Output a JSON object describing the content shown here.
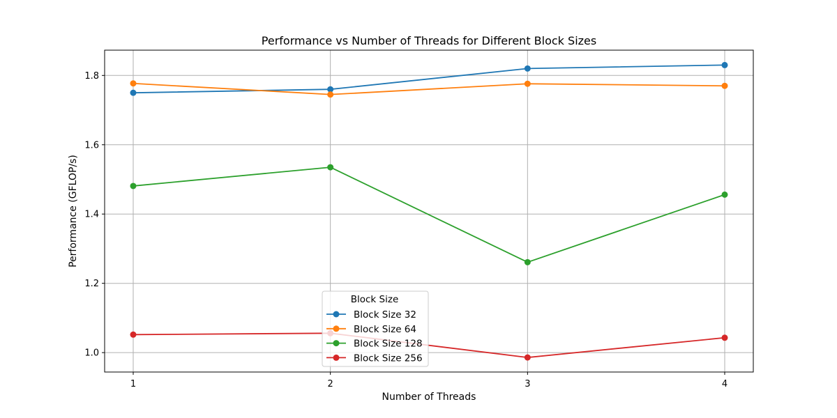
{
  "chart_data": {
    "type": "line",
    "title": "Performance vs Number of Threads for Different Block Sizes",
    "xlabel": "Number of Threads",
    "ylabel": "Performance (GFLOP/s)",
    "x": [
      1,
      2,
      3,
      4
    ],
    "xticks": [
      "1",
      "2",
      "3",
      "4"
    ],
    "yticks": [
      "1.0",
      "1.2",
      "1.4",
      "1.6",
      "1.8"
    ],
    "xlim": [
      0.855,
      4.145
    ],
    "ylim": [
      0.944,
      1.873
    ],
    "grid": true,
    "legend": {
      "title": "Block Size",
      "placement": "lower center"
    },
    "series": [
      {
        "name": "Block Size 32",
        "color": "#1f77b4",
        "marker": "circle",
        "values": [
          1.75,
          1.76,
          1.82,
          1.83
        ]
      },
      {
        "name": "Block Size 64",
        "color": "#ff7f0e",
        "marker": "circle",
        "values": [
          1.777,
          1.745,
          1.776,
          1.77
        ]
      },
      {
        "name": "Block Size 128",
        "color": "#2ca02c",
        "marker": "circle",
        "values": [
          1.481,
          1.535,
          1.261,
          1.456
        ]
      },
      {
        "name": "Block Size 256",
        "color": "#d62728",
        "marker": "circle",
        "values": [
          1.052,
          1.056,
          0.986,
          1.043
        ]
      }
    ]
  }
}
